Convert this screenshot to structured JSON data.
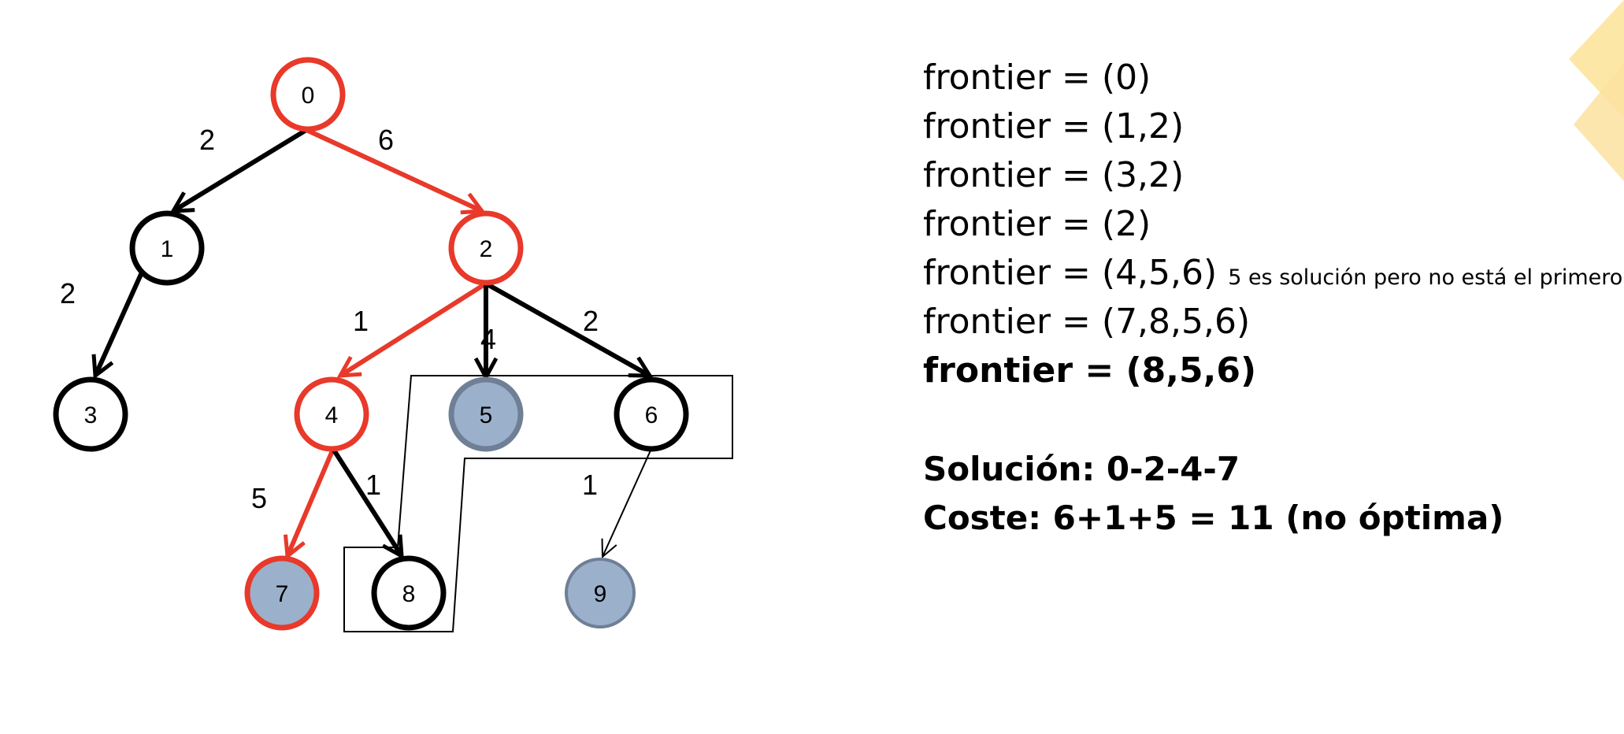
{
  "tree": {
    "nodes": [
      {
        "id": "0",
        "label": "0",
        "style": "path"
      },
      {
        "id": "1",
        "label": "1",
        "style": "normal"
      },
      {
        "id": "2",
        "label": "2",
        "style": "path"
      },
      {
        "id": "3",
        "label": "3",
        "style": "normal"
      },
      {
        "id": "4",
        "label": "4",
        "style": "path"
      },
      {
        "id": "5",
        "label": "5",
        "style": "goal-frontier"
      },
      {
        "id": "6",
        "label": "6",
        "style": "normal"
      },
      {
        "id": "7",
        "label": "7",
        "style": "goal-path"
      },
      {
        "id": "8",
        "label": "8",
        "style": "normal"
      },
      {
        "id": "9",
        "label": "9",
        "style": "goal"
      }
    ],
    "edges": [
      {
        "from": "0",
        "to": "1",
        "cost": "2",
        "style": "black"
      },
      {
        "from": "0",
        "to": "2",
        "cost": "6",
        "style": "red"
      },
      {
        "from": "1",
        "to": "3",
        "cost": "2",
        "style": "black"
      },
      {
        "from": "2",
        "to": "4",
        "cost": "1",
        "style": "red"
      },
      {
        "from": "2",
        "to": "5",
        "cost": "4",
        "style": "black"
      },
      {
        "from": "2",
        "to": "6",
        "cost": "2",
        "style": "black"
      },
      {
        "from": "4",
        "to": "7",
        "cost": "5",
        "style": "red"
      },
      {
        "from": "4",
        "to": "8",
        "cost": "1",
        "style": "black"
      },
      {
        "from": "6",
        "to": "9",
        "cost": "1",
        "style": "thin"
      }
    ],
    "colors": {
      "path": "#e8392a",
      "normal": "#000000",
      "goal_fill": "#9bb0cb",
      "goal_stroke": "#6f7f96"
    }
  },
  "trace": {
    "lines": [
      "frontier = (0)",
      "frontier = (1,2)",
      "frontier = (3,2)",
      "frontier = (2)",
      "frontier = (4,5,6)",
      "frontier = (7,8,5,6)",
      "frontier = (8,5,6)"
    ],
    "note": "5 es solución pero no está el primero",
    "solution": "Solución: 0-2-4-7",
    "cost": "Coste: 6+1+5 = 11 (no óptima)"
  }
}
